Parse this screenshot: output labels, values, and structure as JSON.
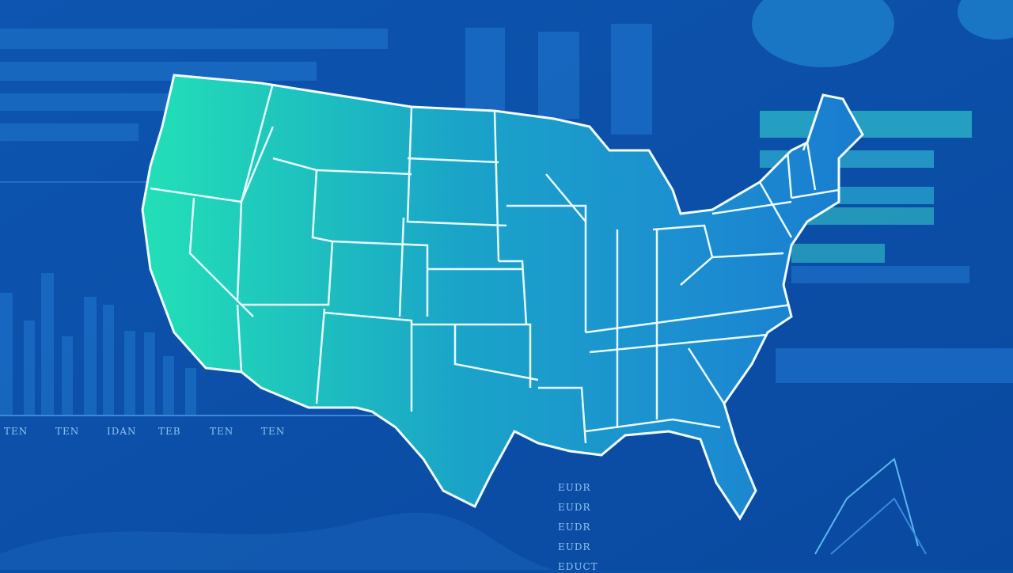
{
  "bottom_labels": [
    "TEN",
    "TEN",
    "IDAN",
    "TEB",
    "TEN",
    "TEN"
  ],
  "side_labels": [
    "EUDR",
    "EUDR",
    "EUDR",
    "EUDR",
    "EDUCT"
  ]
}
